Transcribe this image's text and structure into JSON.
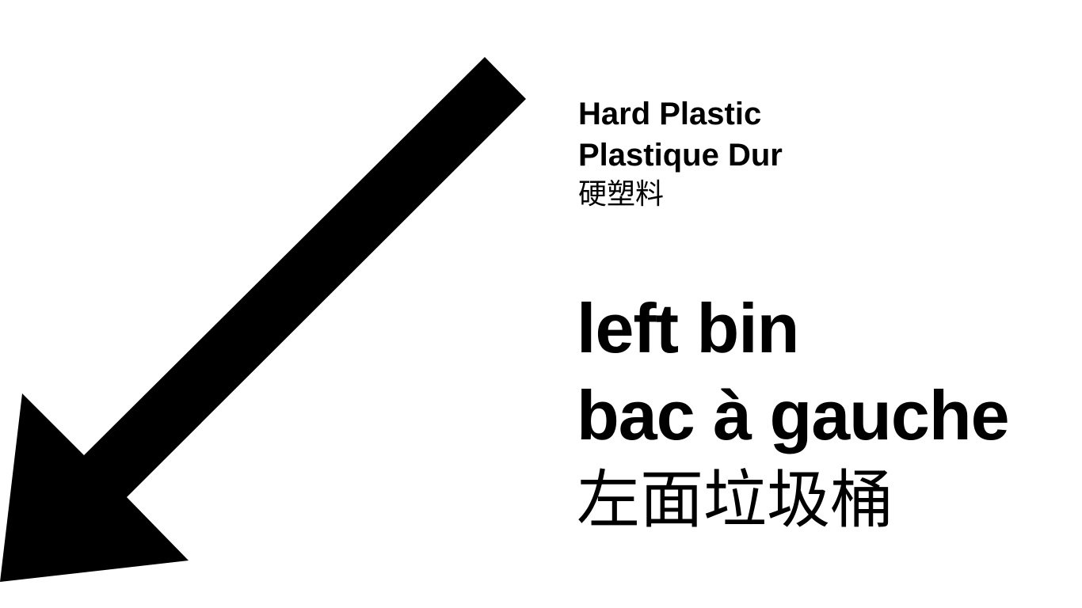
{
  "arrow": {
    "icon": "arrow-down-left-icon",
    "color": "#000000"
  },
  "material": {
    "english": "Hard Plastic",
    "french": "Plastique Dur",
    "chinese": "硬塑料"
  },
  "destination": {
    "english": "left bin",
    "french": "bac à gauche",
    "chinese": "左面垃圾桶"
  }
}
